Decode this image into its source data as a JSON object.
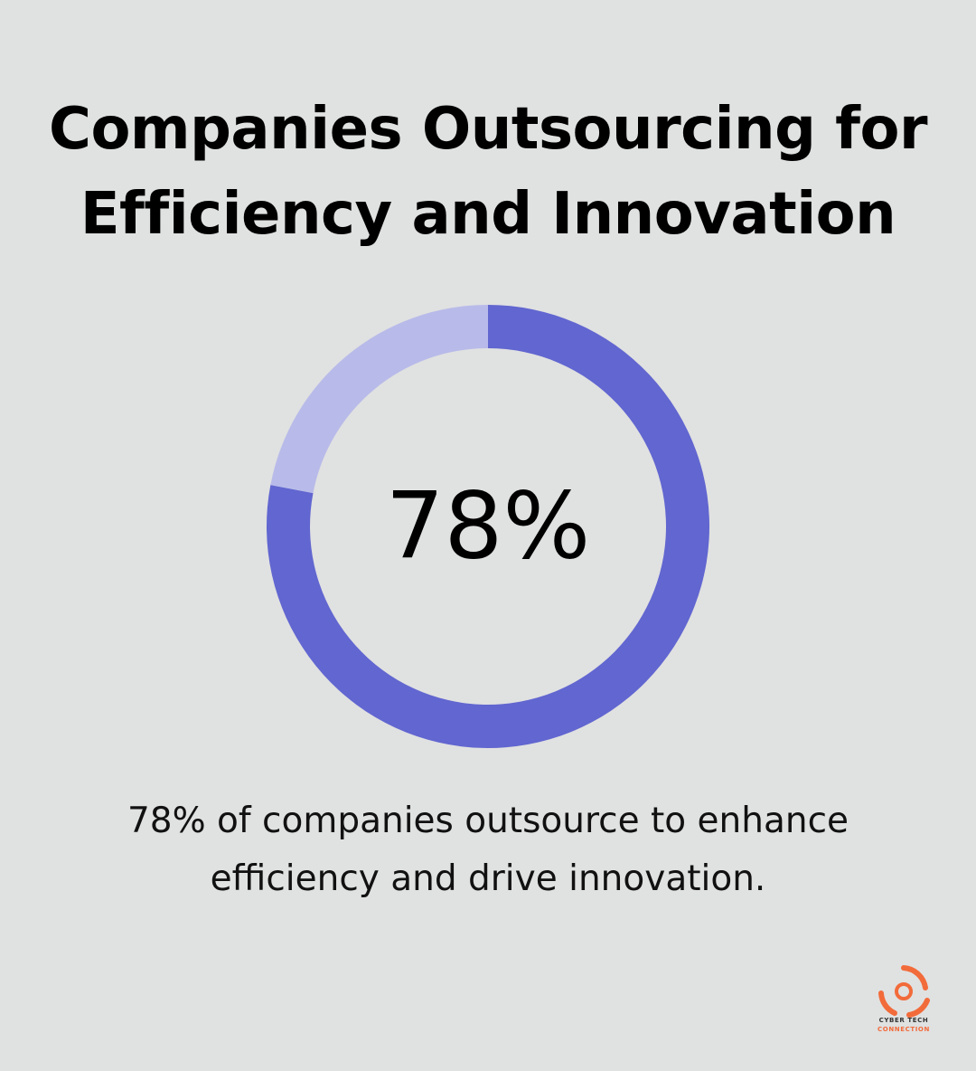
{
  "title": {
    "line1": "Companies Outsourcing for",
    "line2": "Efficiency and Innovation"
  },
  "chart_data": {
    "type": "pie",
    "value_label": "78%",
    "slices": [
      {
        "value": 78,
        "color": "#6166d0"
      },
      {
        "value": 22,
        "color": "#b8bbe9"
      }
    ]
  },
  "caption": {
    "line1": "78% of companies outsource to enhance",
    "line2": "efficiency and drive innovation."
  },
  "logo": {
    "line1": "CYBER TECH",
    "line2": "CONNECTION",
    "color": "#f26b3a"
  }
}
